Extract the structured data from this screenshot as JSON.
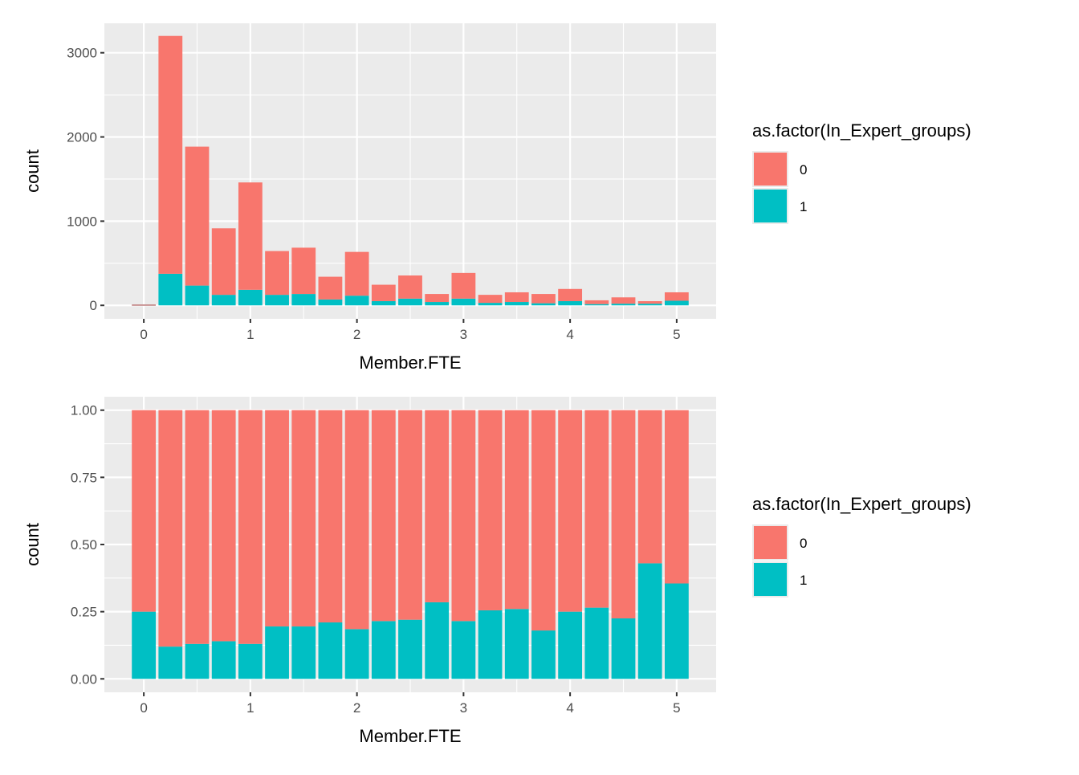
{
  "colors": {
    "group_0": "#F8766D",
    "group_1": "#00BFC4",
    "panel_bg": "#EBEBEB",
    "grid": "#FFFFFF"
  },
  "chart_data": [
    {
      "type": "bar",
      "stacking": "stacked",
      "title": "",
      "xlabel": "Member.FTE",
      "ylabel": "count",
      "x": [
        0,
        0.25,
        0.5,
        0.75,
        1,
        1.25,
        1.5,
        1.75,
        2,
        2.25,
        2.5,
        2.75,
        3,
        3.25,
        3.5,
        3.75,
        4,
        4.25,
        4.5,
        4.75,
        5
      ],
      "series": [
        {
          "name": "0",
          "values": [
            10,
            2825,
            1650,
            790,
            1275,
            520,
            550,
            270,
            520,
            195,
            275,
            95,
            305,
            95,
            115,
            110,
            145,
            45,
            75,
            30,
            100
          ]
        },
        {
          "name": "1",
          "values": [
            0,
            375,
            235,
            125,
            185,
            125,
            135,
            70,
            115,
            50,
            80,
            40,
            80,
            30,
            40,
            25,
            50,
            15,
            20,
            20,
            55
          ]
        }
      ],
      "xlim": [
        -0.37,
        5.37
      ],
      "ylim": [
        -160,
        3350
      ],
      "xticks": [
        "0",
        "1",
        "2",
        "3",
        "4",
        "5"
      ],
      "xtick_values": [
        0,
        1,
        2,
        3,
        4,
        5
      ],
      "yticks": [
        "0",
        "1000",
        "2000",
        "3000"
      ],
      "ytick_values": [
        0,
        1000,
        2000,
        3000
      ],
      "grid": true,
      "legend": {
        "title": "as.factor(In_Expert_groups)",
        "entries": [
          "0",
          "1"
        ],
        "position": "right"
      }
    },
    {
      "type": "bar",
      "stacking": "fill",
      "title": "",
      "xlabel": "Member.FTE",
      "ylabel": "count",
      "x": [
        0,
        0.25,
        0.5,
        0.75,
        1,
        1.25,
        1.5,
        1.75,
        2,
        2.25,
        2.5,
        2.75,
        3,
        3.25,
        3.5,
        3.75,
        4,
        4.25,
        4.5,
        4.75,
        5
      ],
      "series": [
        {
          "name": "0",
          "values": [
            0.75,
            0.88,
            0.87,
            0.86,
            0.87,
            0.805,
            0.805,
            0.79,
            0.815,
            0.785,
            0.78,
            0.715,
            0.785,
            0.745,
            0.74,
            0.82,
            0.75,
            0.735,
            0.775,
            0.57,
            0.645
          ]
        },
        {
          "name": "1",
          "values": [
            0.25,
            0.12,
            0.13,
            0.14,
            0.13,
            0.195,
            0.195,
            0.21,
            0.185,
            0.215,
            0.22,
            0.285,
            0.215,
            0.255,
            0.26,
            0.18,
            0.25,
            0.265,
            0.225,
            0.43,
            0.355
          ]
        }
      ],
      "xlim": [
        -0.37,
        5.37
      ],
      "ylim": [
        -0.05,
        1.05
      ],
      "xticks": [
        "0",
        "1",
        "2",
        "3",
        "4",
        "5"
      ],
      "xtick_values": [
        0,
        1,
        2,
        3,
        4,
        5
      ],
      "yticks": [
        "0.00",
        "0.25",
        "0.50",
        "0.75",
        "1.00"
      ],
      "ytick_values": [
        0,
        0.25,
        0.5,
        0.75,
        1.0
      ],
      "grid": true,
      "legend": {
        "title": "as.factor(In_Expert_groups)",
        "entries": [
          "0",
          "1"
        ],
        "position": "right"
      }
    }
  ]
}
